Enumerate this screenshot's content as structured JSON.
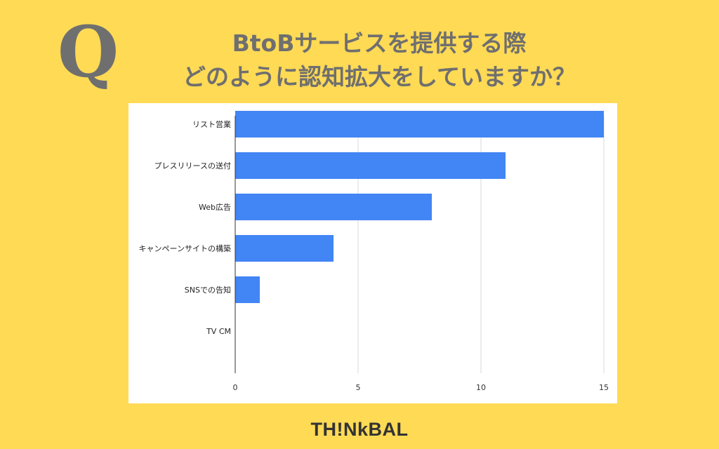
{
  "question_mark": "Q",
  "title": {
    "line1": "BtoBサービスを提供する際",
    "line2": "どのように認知拡大をしていますか？"
  },
  "brand": "TH!NkBAL",
  "colors": {
    "background": "#FFDA55",
    "bar": "#4285F4",
    "title_text": "#6F6F6F",
    "grid": "#D9D9D9"
  },
  "chart_data": {
    "type": "bar",
    "orientation": "horizontal",
    "categories": [
      "リスト営業",
      "プレスリリースの送付",
      "Web広告",
      "キャンペーンサイトの構築",
      "SNSでの告知",
      "TV CM"
    ],
    "values": [
      15,
      11,
      8,
      4,
      1,
      0
    ],
    "xlim": [
      0,
      15
    ],
    "x_ticks": [
      0,
      5,
      10,
      15
    ],
    "grid": true,
    "legend": "none"
  }
}
